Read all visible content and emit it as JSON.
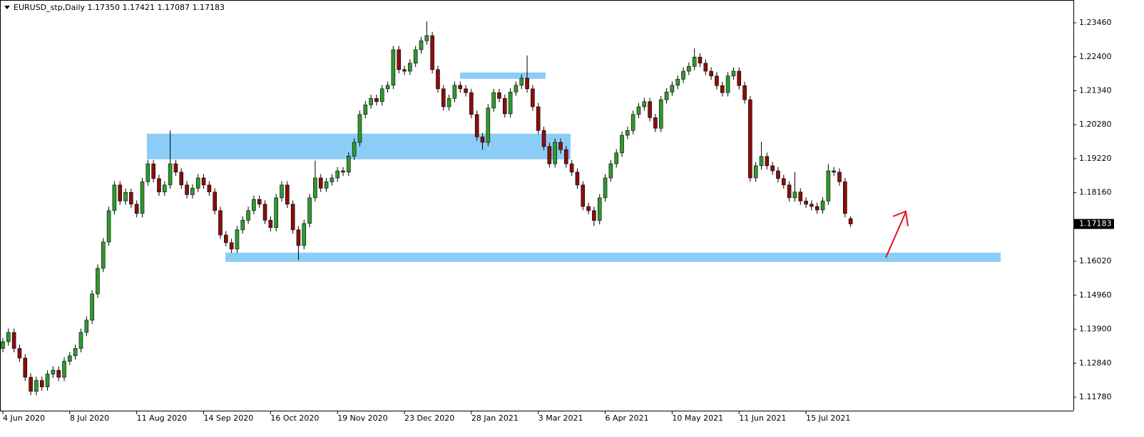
{
  "chart_data": {
    "type": "candlestick",
    "title": "EURUSD_stp,Daily  1.17350 1.17421 1.17087 1.17183",
    "categories": [
      "4 Jun 2020",
      null,
      null,
      null,
      null,
      null,
      null,
      null,
      null,
      null,
      null,
      null,
      "8 Jul 2020",
      null,
      null,
      null,
      null,
      null,
      null,
      null,
      null,
      null,
      null,
      null,
      "11 Aug 2020",
      null,
      null,
      null,
      null,
      null,
      null,
      null,
      null,
      null,
      null,
      null,
      "14 Sep 2020",
      null,
      null,
      null,
      null,
      null,
      null,
      null,
      null,
      null,
      null,
      null,
      "16 Oct 2020",
      null,
      null,
      null,
      null,
      null,
      null,
      null,
      null,
      null,
      null,
      null,
      "19 Nov 2020",
      null,
      null,
      null,
      null,
      null,
      null,
      null,
      null,
      null,
      null,
      null,
      "23 Dec 2020",
      null,
      null,
      null,
      null,
      null,
      null,
      null,
      null,
      null,
      null,
      null,
      "28 Jan 2021",
      null,
      null,
      null,
      null,
      null,
      null,
      null,
      null,
      null,
      null,
      null,
      "3 Mar 2021",
      null,
      null,
      null,
      null,
      null,
      null,
      null,
      null,
      null,
      null,
      null,
      "6 Apr 2021",
      null,
      null,
      null,
      null,
      null,
      null,
      null,
      null,
      null,
      null,
      null,
      "10 May 2021",
      null,
      null,
      null,
      null,
      null,
      null,
      null,
      null,
      null,
      null,
      null,
      "11 Jun 2021",
      null,
      null,
      null,
      null,
      null,
      null,
      null,
      null,
      null,
      null,
      null,
      "15 Jul 2021",
      null,
      null,
      null,
      null,
      null,
      null,
      null,
      null
    ],
    "open": [
      1.133,
      1.1351,
      1.138,
      1.133,
      1.13,
      1.124,
      1.1196,
      1.123,
      1.121,
      1.125,
      1.1262,
      1.124,
      1.129,
      1.1307,
      1.133,
      1.138,
      1.1418,
      1.15,
      1.158,
      1.1662,
      1.176,
      1.184,
      1.179,
      1.1817,
      1.178,
      1.1751,
      1.185,
      1.1906,
      1.186,
      1.1818,
      1.184,
      1.1906,
      1.188,
      1.184,
      1.181,
      1.183,
      1.1862,
      1.184,
      1.1818,
      1.176,
      1.1684,
      1.166,
      1.164,
      1.17,
      1.173,
      1.176,
      1.1795,
      1.178,
      1.173,
      1.1707,
      1.18,
      1.184,
      1.178,
      1.17,
      1.1651,
      1.172,
      1.18,
      1.1862,
      1.183,
      1.185,
      1.1862,
      1.1884,
      1.188,
      1.193,
      1.1973,
      1.206,
      1.209,
      1.211,
      1.21,
      1.214,
      1.2151,
      1.2262,
      1.22,
      1.2195,
      1.222,
      1.2262,
      1.229,
      1.2306,
      1.22,
      1.214,
      1.2084,
      1.211,
      1.2151,
      1.214,
      1.2128,
      1.206,
      1.199,
      1.1973,
      1.208,
      1.2128,
      1.211,
      1.2062,
      1.213,
      1.2151,
      1.2173,
      1.214,
      1.2084,
      1.201,
      1.196,
      1.1906,
      1.1973,
      1.195,
      1.1906,
      1.188,
      1.184,
      1.1773,
      1.176,
      1.1729,
      1.18,
      1.1862,
      1.1906,
      1.194,
      1.1995,
      1.201,
      1.206,
      1.2084,
      1.21,
      1.205,
      1.2017,
      1.2106,
      1.213,
      1.2151,
      1.217,
      1.2195,
      1.221,
      1.2239,
      1.222,
      1.2195,
      1.218,
      1.215,
      1.2128,
      1.218,
      1.2195,
      1.215,
      1.2106,
      1.1862,
      1.19,
      1.1929,
      1.19,
      1.1884,
      1.186,
      1.184,
      1.18,
      1.1818,
      1.179,
      1.178,
      1.1773,
      1.1762,
      1.179,
      1.1884,
      1.188,
      1.185,
      1.1735
    ],
    "high": [
      1.1363,
      1.1392,
      1.1392,
      1.1342,
      1.1312,
      1.1252,
      1.1242,
      1.1242,
      1.1262,
      1.1274,
      1.1274,
      1.1302,
      1.1319,
      1.1342,
      1.1392,
      1.143,
      1.1512,
      1.1592,
      1.1674,
      1.1772,
      1.1852,
      1.1852,
      1.1829,
      1.1829,
      1.1792,
      1.1862,
      1.1918,
      1.1918,
      1.1872,
      1.1852,
      1.201,
      1.1918,
      1.1892,
      1.1852,
      1.1842,
      1.1874,
      1.1874,
      1.1852,
      1.183,
      1.1772,
      1.1696,
      1.1672,
      1.1712,
      1.1742,
      1.1772,
      1.1807,
      1.1807,
      1.1792,
      1.1742,
      1.1812,
      1.1852,
      1.1852,
      1.1792,
      1.1712,
      1.1732,
      1.1812,
      1.1916,
      1.1874,
      1.1862,
      1.1874,
      1.1896,
      1.1896,
      1.1942,
      1.1985,
      1.2072,
      1.2102,
      1.2122,
      1.2122,
      1.2152,
      1.2163,
      1.2274,
      1.2274,
      1.2212,
      1.2232,
      1.2274,
      1.2302,
      1.235,
      1.2318,
      1.2212,
      1.2152,
      1.2122,
      1.2163,
      1.2163,
      1.2152,
      1.214,
      1.2072,
      1.2002,
      1.2092,
      1.214,
      1.214,
      1.2122,
      1.2142,
      1.2163,
      1.2185,
      1.2244,
      1.2152,
      1.2096,
      1.2022,
      1.1972,
      1.1985,
      1.1985,
      1.1962,
      1.1918,
      1.1892,
      1.1852,
      1.1785,
      1.1772,
      1.1812,
      1.1874,
      1.1918,
      1.1952,
      1.2007,
      1.2022,
      1.2072,
      1.2096,
      1.2112,
      1.2112,
      1.2062,
      1.2118,
      1.2142,
      1.2163,
      1.2182,
      1.2207,
      1.2222,
      1.2266,
      1.2251,
      1.2232,
      1.2207,
      1.2192,
      1.2162,
      1.2192,
      1.2207,
      1.2207,
      1.2162,
      1.2118,
      1.1912,
      1.1975,
      1.1941,
      1.1912,
      1.1896,
      1.1872,
      1.1852,
      1.188,
      1.183,
      1.1802,
      1.1792,
      1.1785,
      1.1802,
      1.1906,
      1.1896,
      1.1892,
      1.1862,
      1.17421
    ],
    "low": [
      1.1318,
      1.1339,
      1.1318,
      1.1288,
      1.1228,
      1.1184,
      1.1184,
      1.1198,
      1.1198,
      1.1238,
      1.1228,
      1.1228,
      1.1278,
      1.1295,
      1.1318,
      1.1368,
      1.1406,
      1.1488,
      1.1568,
      1.165,
      1.1748,
      1.1778,
      1.1778,
      1.1768,
      1.1739,
      1.1739,
      1.1838,
      1.1848,
      1.1806,
      1.1806,
      1.1828,
      1.1868,
      1.1828,
      1.1798,
      1.1798,
      1.1818,
      1.1828,
      1.1806,
      1.1748,
      1.1672,
      1.1648,
      1.1628,
      1.1628,
      1.1688,
      1.1718,
      1.1748,
      1.1768,
      1.1718,
      1.1695,
      1.1695,
      1.1788,
      1.1768,
      1.1688,
      1.1606,
      1.1639,
      1.1708,
      1.1788,
      1.1818,
      1.1818,
      1.1838,
      1.185,
      1.1868,
      1.1868,
      1.1918,
      1.1961,
      1.2048,
      1.2078,
      1.2088,
      1.2088,
      1.2128,
      1.2139,
      1.2188,
      1.2183,
      1.2183,
      1.2208,
      1.225,
      1.2278,
      1.2188,
      1.2128,
      1.2072,
      1.2072,
      1.2098,
      1.2128,
      1.2116,
      1.2048,
      1.1978,
      1.195,
      1.1961,
      1.2068,
      1.2098,
      1.205,
      1.205,
      1.2118,
      1.2139,
      1.2128,
      1.2072,
      1.1998,
      1.1948,
      1.1894,
      1.1894,
      1.1938,
      1.1894,
      1.1868,
      1.1828,
      1.1761,
      1.1748,
      1.1712,
      1.1717,
      1.1788,
      1.185,
      1.1894,
      1.1928,
      1.1983,
      1.1998,
      1.2048,
      1.2072,
      1.2038,
      1.2005,
      1.2005,
      1.2094,
      1.2118,
      1.2139,
      1.2158,
      1.2183,
      1.2198,
      1.2208,
      1.2183,
      1.2168,
      1.2138,
      1.2116,
      1.2116,
      1.2168,
      1.2138,
      1.2094,
      1.185,
      1.185,
      1.1888,
      1.1888,
      1.1872,
      1.1848,
      1.1828,
      1.1788,
      1.1788,
      1.1778,
      1.1768,
      1.1761,
      1.175,
      1.175,
      1.1778,
      1.1868,
      1.1838,
      1.1739,
      1.17087
    ],
    "close": [
      1.1351,
      1.138,
      1.133,
      1.13,
      1.124,
      1.1196,
      1.123,
      1.121,
      1.125,
      1.1262,
      1.124,
      1.129,
      1.1307,
      1.133,
      1.138,
      1.1418,
      1.15,
      1.158,
      1.1662,
      1.176,
      1.184,
      1.179,
      1.1817,
      1.178,
      1.1751,
      1.185,
      1.1906,
      1.186,
      1.1818,
      1.184,
      1.1906,
      1.188,
      1.184,
      1.181,
      1.183,
      1.1862,
      1.184,
      1.1818,
      1.176,
      1.1684,
      1.166,
      1.164,
      1.17,
      1.173,
      1.176,
      1.1795,
      1.178,
      1.173,
      1.1707,
      1.18,
      1.184,
      1.178,
      1.17,
      1.1651,
      1.172,
      1.18,
      1.1862,
      1.183,
      1.185,
      1.1862,
      1.1884,
      1.188,
      1.193,
      1.1973,
      1.206,
      1.209,
      1.211,
      1.21,
      1.214,
      1.2151,
      1.2262,
      1.22,
      1.2195,
      1.222,
      1.2262,
      1.229,
      1.2306,
      1.22,
      1.214,
      1.2084,
      1.211,
      1.2151,
      1.214,
      1.2128,
      1.206,
      1.199,
      1.1973,
      1.208,
      1.2128,
      1.211,
      1.2062,
      1.213,
      1.2151,
      1.2173,
      1.214,
      1.2084,
      1.201,
      1.196,
      1.1906,
      1.1973,
      1.195,
      1.1906,
      1.188,
      1.184,
      1.1773,
      1.176,
      1.1729,
      1.18,
      1.1862,
      1.1906,
      1.194,
      1.1995,
      1.201,
      1.206,
      1.2084,
      1.21,
      1.205,
      1.2017,
      1.2106,
      1.213,
      1.2151,
      1.217,
      1.2195,
      1.221,
      1.2239,
      1.222,
      1.2195,
      1.218,
      1.215,
      1.2128,
      1.218,
      1.2195,
      1.215,
      1.2106,
      1.1862,
      1.19,
      1.1929,
      1.19,
      1.1884,
      1.186,
      1.184,
      1.18,
      1.1818,
      1.179,
      1.178,
      1.1773,
      1.1762,
      1.179,
      1.1884,
      1.188,
      1.185,
      1.1751,
      1.17183
    ],
    "colors": {
      "up": "#2e9a2e",
      "down": "#8b0d0d",
      "zone": "#8ccdf7"
    },
    "zones": [
      {
        "top": 1.2,
        "bottom": 1.192
      },
      {
        "top": 1.2191,
        "bottom": 1.2171
      },
      {
        "top": 1.1629,
        "bottom": 1.16
      }
    ],
    "ylim": [
      1.11358,
      1.24171
    ],
    "yticks": [
      {
        "value": 1.2346,
        "label": "1.23460"
      },
      {
        "value": 1.224,
        "label": "1.22400"
      },
      {
        "value": 1.2134,
        "label": "1.21340"
      },
      {
        "value": 1.2028,
        "label": "1.20280"
      },
      {
        "value": 1.1922,
        "label": "1.19220"
      },
      {
        "value": 1.1816,
        "label": "1.18160"
      },
      {
        "value": 1.1602,
        "label": "1.16020"
      },
      {
        "value": 1.1496,
        "label": "1.14960"
      },
      {
        "value": 1.139,
        "label": "1.13900"
      },
      {
        "value": 1.1284,
        "label": "1.12840"
      },
      {
        "value": 1.1178,
        "label": "1.11780"
      }
    ]
  }
}
